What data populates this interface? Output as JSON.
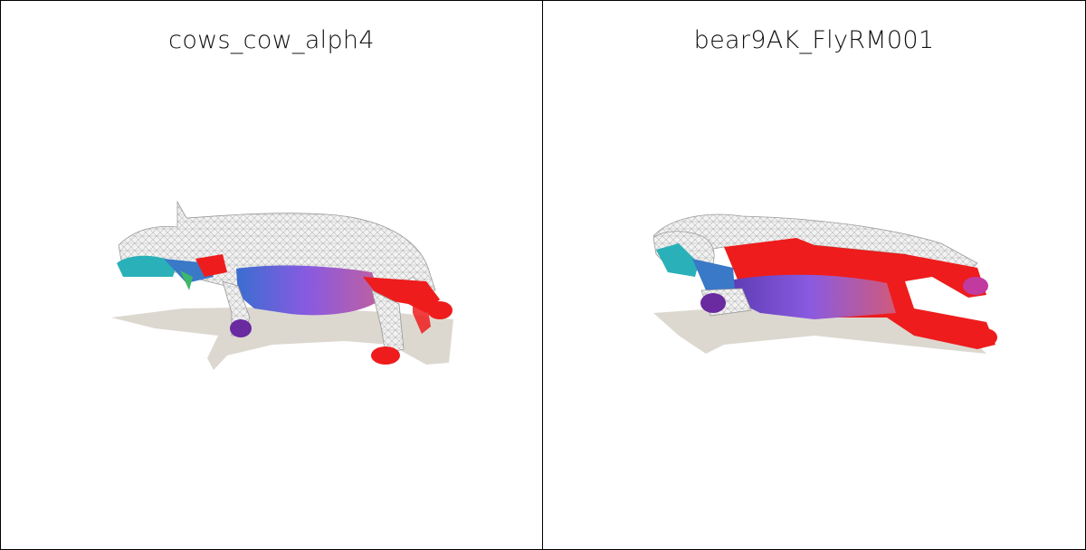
{
  "panels": [
    {
      "title": "cows_cow_alph4",
      "subject": "cow mesh"
    },
    {
      "title": "bear9AK_FlyRM001",
      "subject": "bear mesh"
    }
  ],
  "colors": {
    "wireframe": "#e6e6e6",
    "wire_stroke": "#b8b8b8",
    "shadow": "#d9d5cf",
    "red": "#ee1c1c",
    "purple": "#8a4ad8",
    "violet": "#6a2aa0",
    "teal": "#2ab0b8",
    "blue": "#3a78c8",
    "green": "#3cb86a",
    "pink": "#d85a8a"
  }
}
